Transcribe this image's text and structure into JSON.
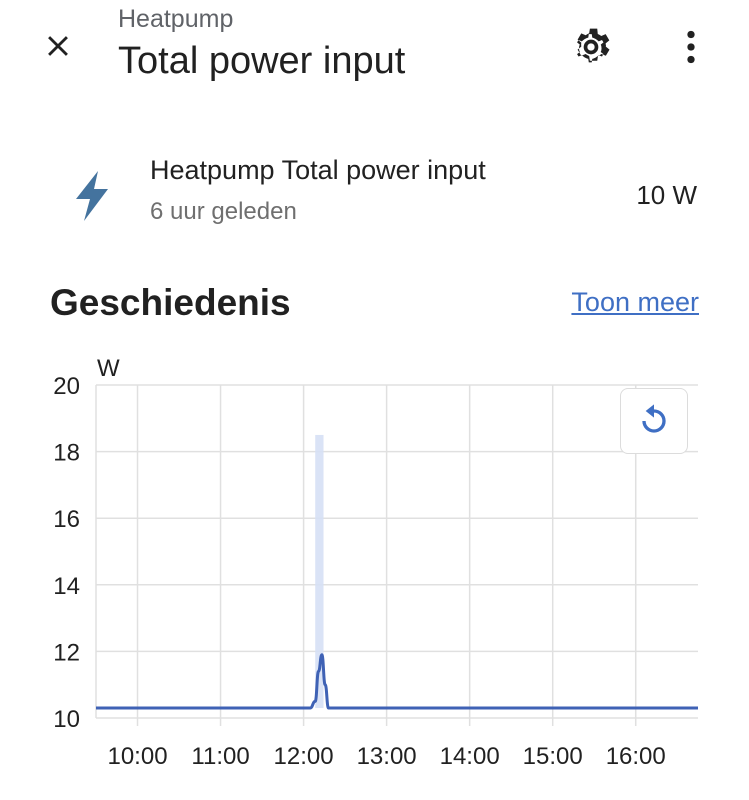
{
  "header": {
    "subtitle": "Heatpump",
    "title": "Total power input",
    "close_icon": "close-icon",
    "settings_icon": "gear-icon",
    "more_icon": "more-vertical-icon"
  },
  "entity": {
    "icon": "flash-icon",
    "icon_color": "#44739e",
    "name": "Heatpump Total power input",
    "last_changed": "6 uur geleden",
    "state": "10 W"
  },
  "history": {
    "title": "Geschiedenis",
    "show_more": "Toon meer",
    "reset_icon": "restore-icon"
  },
  "chart_data": {
    "type": "line",
    "ylabel": "W",
    "ylim": [
      10,
      20
    ],
    "yticks": [
      10,
      12,
      14,
      16,
      18,
      20
    ],
    "xlim_hours": [
      9.5,
      16.75
    ],
    "xtick_labels": [
      "10:00",
      "11:00",
      "12:00",
      "13:00",
      "14:00",
      "15:00",
      "16:00"
    ],
    "xtick_hours": [
      10,
      11,
      12,
      13,
      14,
      15,
      16
    ],
    "grid": true,
    "series": [
      {
        "color": "#3f62b5",
        "x_hours": [
          9.5,
          12.08,
          12.14,
          12.18,
          12.22,
          12.26,
          12.3,
          16.75
        ],
        "values": [
          10.3,
          10.3,
          10.5,
          11.4,
          11.9,
          11.0,
          10.3,
          10.3
        ]
      }
    ],
    "band": {
      "color": "#d6e0f5",
      "x_start_hours": 12.14,
      "x_end_hours": 12.24,
      "min": 10.3,
      "max": 18.5
    }
  }
}
